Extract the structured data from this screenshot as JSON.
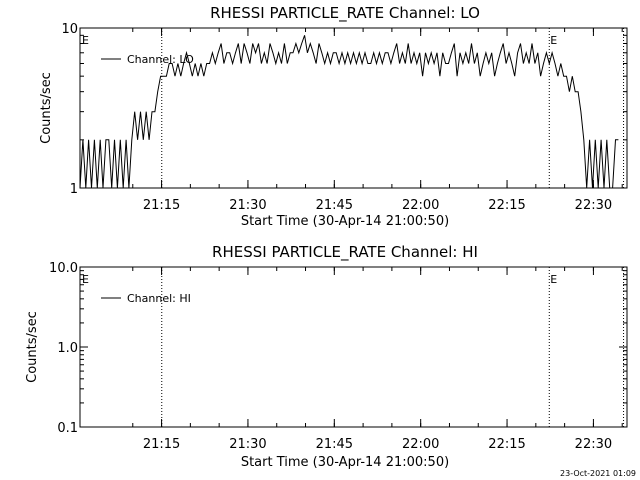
{
  "chart_data": [
    {
      "type": "line",
      "title": "RHESSI PARTICLE_RATE Channel: LO",
      "ylabel": "Counts/sec",
      "xlabel": "Start Time (30-Apr-14 21:00:50)",
      "yscale": "log",
      "ylim": [
        1,
        10
      ],
      "yticks": [
        "10",
        "1"
      ],
      "xlim_minutes": [
        0,
        95
      ],
      "xticks": [
        "21:15",
        "21:30",
        "21:45",
        "22:00",
        "22:15",
        "22:30"
      ],
      "legend": {
        "label": "Channel: LO",
        "placement": "top-left"
      },
      "event_markers": {
        "label": "E",
        "times_minutes": [
          14.2,
          81.5,
          94.4
        ]
      },
      "series": [
        {
          "name": "Channel: LO",
          "x": [
            0,
            0.5,
            1,
            1.5,
            2,
            2.5,
            3,
            3.5,
            4,
            4.5,
            5,
            5.5,
            6,
            6.5,
            7,
            7.5,
            8,
            8.5,
            9,
            9.5,
            10,
            10.5,
            11,
            11.5,
            12,
            12.5,
            13,
            13.5,
            14,
            14.5,
            15,
            15.5,
            16,
            16.5,
            17,
            17.5,
            18,
            18.5,
            19,
            19.5,
            20,
            20.5,
            21,
            21.5,
            22,
            22.5,
            23,
            23.5,
            24,
            24.5,
            25,
            25.5,
            26,
            26.5,
            27,
            27.5,
            28,
            28.5,
            29,
            29.5,
            30,
            30.5,
            31,
            31.5,
            32,
            32.5,
            33,
            33.5,
            34,
            34.5,
            35,
            35.5,
            36,
            36.5,
            37,
            37.5,
            38,
            38.5,
            39,
            39.5,
            40,
            40.5,
            41,
            41.5,
            42,
            42.5,
            43,
            43.5,
            44,
            44.5,
            45,
            45.5,
            46,
            46.5,
            47,
            47.5,
            48,
            48.5,
            49,
            49.5,
            50,
            50.5,
            51,
            51.5,
            52,
            52.5,
            53,
            53.5,
            54,
            54.5,
            55,
            55.5,
            56,
            56.5,
            57,
            57.5,
            58,
            58.5,
            59,
            59.5,
            60,
            60.5,
            61,
            61.5,
            62,
            62.5,
            63,
            63.5,
            64,
            64.5,
            65,
            65.5,
            66,
            66.5,
            67,
            67.5,
            68,
            68.5,
            69,
            69.5,
            70,
            70.5,
            71,
            71.5,
            72,
            72.5,
            73,
            73.5,
            74,
            74.5,
            75,
            75.5,
            76,
            76.5,
            77,
            77.5,
            78,
            78.5,
            79,
            79.5,
            80,
            80.5,
            81,
            81.5,
            82,
            82.5,
            83,
            83.5,
            84,
            84.5,
            85,
            85.5,
            86,
            86.5,
            87,
            87.5,
            88,
            88.5,
            89,
            89.5,
            90,
            90.5,
            91,
            91.5,
            92,
            92.5,
            93,
            93.5
          ],
          "values": [
            1,
            2,
            1,
            2,
            1,
            2,
            1,
            2,
            1,
            2,
            2,
            1,
            2,
            1,
            2,
            1,
            2,
            1,
            2,
            3,
            2,
            3,
            2,
            3,
            2,
            3,
            3,
            4,
            5,
            5,
            5,
            6,
            6,
            5,
            6,
            5,
            6,
            7,
            6,
            5,
            6,
            5,
            6,
            5,
            6,
            6,
            7,
            6,
            7,
            8,
            6,
            7,
            7,
            6,
            7,
            8,
            6,
            8,
            7,
            6,
            8,
            7,
            8,
            6,
            7,
            6,
            8,
            7,
            6,
            7,
            6,
            8,
            6,
            7,
            7,
            8,
            7,
            8,
            9,
            7,
            8,
            7,
            6,
            8,
            7,
            6,
            7,
            6,
            7,
            7,
            6,
            7,
            6,
            7,
            6,
            7,
            6,
            7,
            6,
            7,
            6,
            6,
            7,
            6,
            7,
            6,
            7,
            7,
            6,
            7,
            8,
            6,
            7,
            6,
            8,
            6,
            7,
            6,
            7,
            5,
            7,
            6,
            7,
            6,
            7,
            5,
            7,
            6,
            6,
            7,
            8,
            5,
            7,
            6,
            7,
            6,
            8,
            6,
            7,
            5,
            6,
            7,
            6,
            7,
            5,
            6,
            7,
            8,
            6,
            7,
            6,
            5,
            7,
            8,
            6,
            7,
            6,
            8,
            6,
            7,
            5,
            6,
            7,
            6,
            7,
            6,
            5,
            6,
            5,
            5,
            4,
            5,
            4,
            4,
            3,
            2,
            1,
            2,
            1,
            2,
            1,
            2,
            1,
            2,
            1,
            1,
            2,
            2
          ]
        }
      ]
    },
    {
      "type": "line",
      "title": "RHESSI PARTICLE_RATE Channel: HI",
      "ylabel": "Counts/sec",
      "xlabel": "Start Time (30-Apr-14 21:00:50)",
      "yscale": "log",
      "ylim": [
        0.1,
        10
      ],
      "yticks": [
        "10.0",
        "1.0",
        "0.1"
      ],
      "xlim_minutes": [
        0,
        95
      ],
      "xticks": [
        "21:15",
        "21:30",
        "21:45",
        "22:00",
        "22:15",
        "22:30"
      ],
      "legend": {
        "label": "Channel: HI",
        "placement": "top-left"
      },
      "event_markers": {
        "label": "E",
        "times_minutes": [
          14.2,
          81.5,
          94.4
        ]
      },
      "series": [
        {
          "name": "Channel: HI",
          "x": [],
          "values": []
        }
      ]
    }
  ],
  "timestamp": "23-Oct-2021 01:09"
}
